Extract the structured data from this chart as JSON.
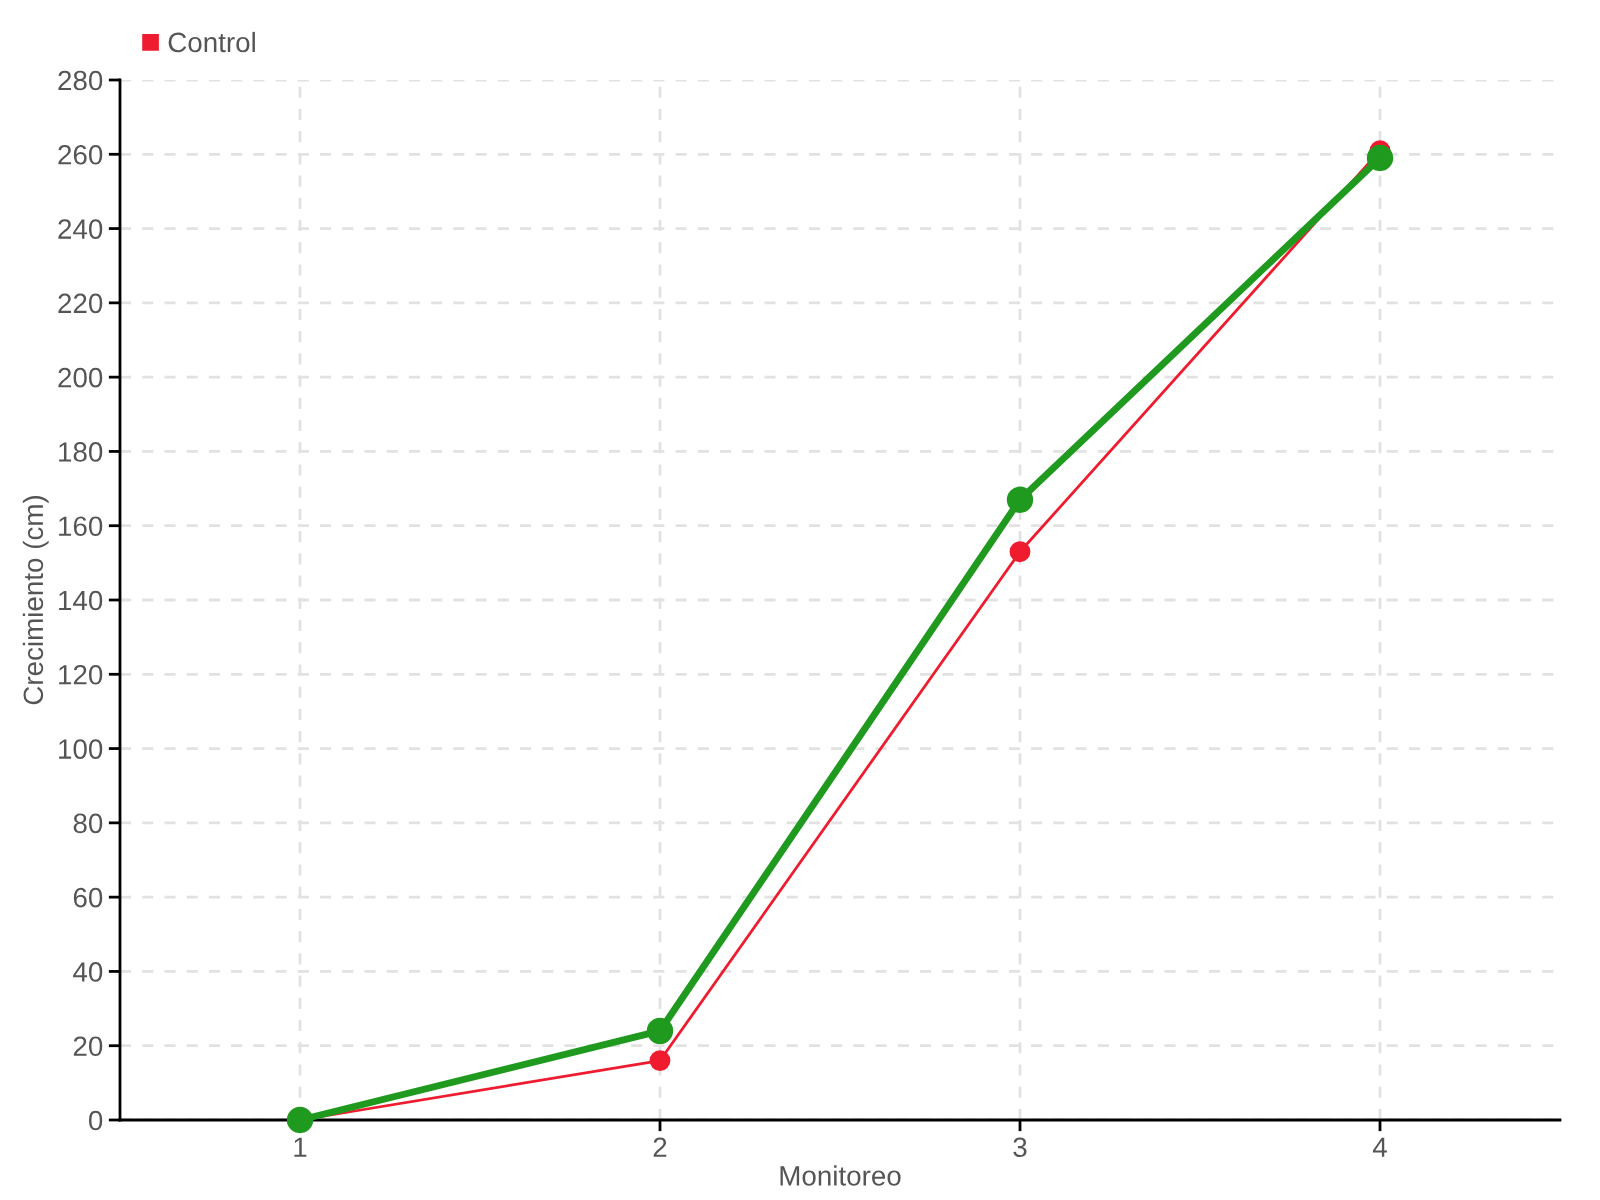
{
  "chart_data": {
    "type": "line",
    "xlabel": "Monitoreo",
    "ylabel": "Crecimiento (cm)",
    "categories": [
      "1",
      "2",
      "3",
      "4"
    ],
    "series": [
      {
        "color": "#1f9a1f",
        "values": [
          0,
          24,
          167,
          259
        ]
      },
      {
        "name": "Control",
        "color": "#ee1c2e",
        "values": [
          0,
          16,
          153,
          261
        ]
      }
    ],
    "ylim": [
      0,
      280
    ],
    "yticks": [
      0,
      20,
      40,
      60,
      80,
      100,
      120,
      140,
      160,
      180,
      200,
      220,
      240,
      260,
      280
    ],
    "grid": true,
    "legend": "top left",
    "marker": "circle",
    "line_style": "solid"
  }
}
